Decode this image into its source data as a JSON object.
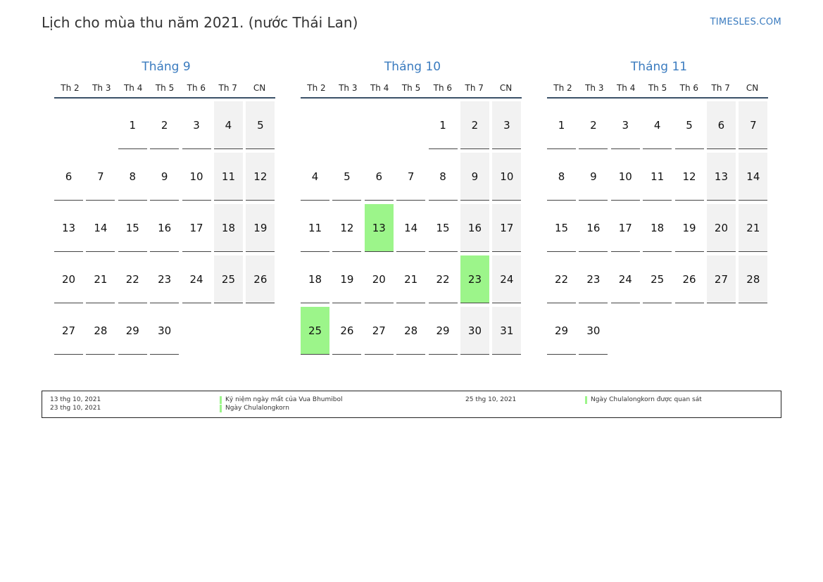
{
  "header": {
    "title": "Lịch cho mùa thu năm 2021. (nước Thái Lan)",
    "site": "TIMESLES.COM"
  },
  "weekdays": [
    "Th 2",
    "Th 3",
    "Th 4",
    "Th 5",
    "Th 6",
    "Th 7",
    "CN"
  ],
  "months": [
    {
      "name": "Tháng 9",
      "weeks": [
        [
          "",
          "",
          "1",
          "2",
          "3",
          "4",
          "5"
        ],
        [
          "6",
          "7",
          "8",
          "9",
          "10",
          "11",
          "12"
        ],
        [
          "13",
          "14",
          "15",
          "16",
          "17",
          "18",
          "19"
        ],
        [
          "20",
          "21",
          "22",
          "23",
          "24",
          "25",
          "26"
        ],
        [
          "27",
          "28",
          "29",
          "30",
          "",
          "",
          ""
        ]
      ],
      "holidays": []
    },
    {
      "name": "Tháng 10",
      "weeks": [
        [
          "",
          "",
          "",
          "",
          "1",
          "2",
          "3"
        ],
        [
          "4",
          "5",
          "6",
          "7",
          "8",
          "9",
          "10"
        ],
        [
          "11",
          "12",
          "13",
          "14",
          "15",
          "16",
          "17"
        ],
        [
          "18",
          "19",
          "20",
          "21",
          "22",
          "23",
          "24"
        ],
        [
          "25",
          "26",
          "27",
          "28",
          "29",
          "30",
          "31"
        ]
      ],
      "holidays": [
        "13",
        "23",
        "25"
      ]
    },
    {
      "name": "Tháng 11",
      "weeks": [
        [
          "1",
          "2",
          "3",
          "4",
          "5",
          "6",
          "7"
        ],
        [
          "8",
          "9",
          "10",
          "11",
          "12",
          "13",
          "14"
        ],
        [
          "15",
          "16",
          "17",
          "18",
          "19",
          "20",
          "21"
        ],
        [
          "22",
          "23",
          "24",
          "25",
          "26",
          "27",
          "28"
        ],
        [
          "29",
          "30",
          "",
          "",
          "",
          "",
          ""
        ]
      ],
      "holidays": []
    }
  ],
  "legend": {
    "entries": [
      {
        "date": "13 thg 10, 2021",
        "name": "Kỷ niệm ngày mất của Vua Bhumibol"
      },
      {
        "date": "23 thg 10, 2021",
        "name": "Ngày Chulalongkorn"
      },
      {
        "date": "25 thg 10, 2021",
        "name": "Ngày Chulalongkorn được quan sát"
      }
    ]
  },
  "colors": {
    "accent": "#3a7bbf",
    "holiday": "#9cf58a",
    "weekend": "#f2f2f2",
    "rule": "#3b5168"
  }
}
